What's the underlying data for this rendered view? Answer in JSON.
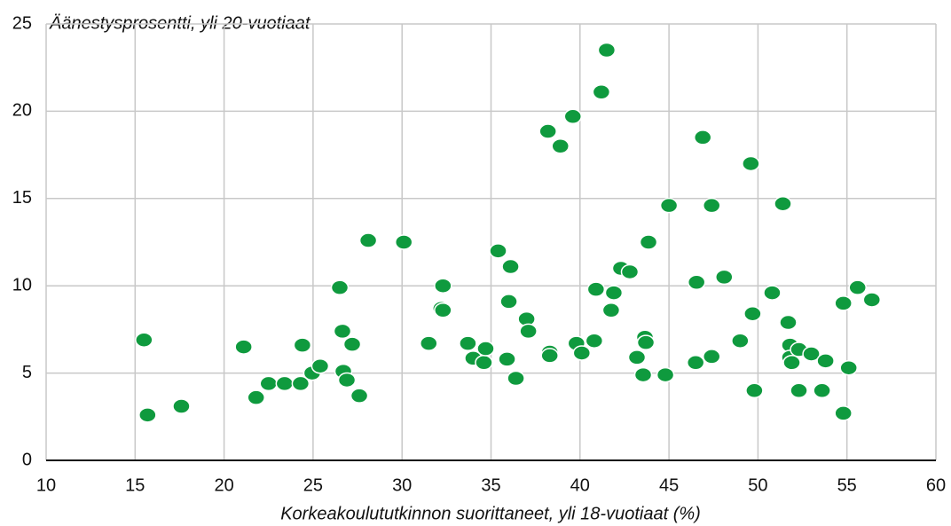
{
  "chart_data": {
    "type": "scatter",
    "y_label": "Äänestysprosentti, yli 20-vuotiaat",
    "x_label": "Korkeakoulututkinnon suorittaneet, yli 18-vuotiaat (%)",
    "color": "#0f9a3e",
    "x": [
      15.5,
      15.7,
      17.6,
      21.1,
      21.8,
      22.5,
      23.4,
      24.3,
      24.4,
      24.95,
      25.4,
      26.5,
      26.65,
      26.7,
      26.9,
      27.2,
      27.6,
      28.1,
      30.1,
      31.5,
      32.2,
      32.3,
      32.3,
      33.7,
      34.0,
      34.6,
      34.7,
      35.4,
      35.9,
      36.0,
      36.1,
      36.4,
      37.0,
      37.1,
      38.2,
      38.3,
      38.3,
      38.9,
      39.6,
      39.8,
      40.1,
      40.8,
      40.9,
      41.2,
      41.5,
      41.75,
      41.9,
      42.3,
      42.8,
      43.2,
      43.55,
      43.65,
      43.7,
      43.85,
      44.8,
      45.0,
      46.5,
      46.55,
      46.9,
      47.4,
      47.4,
      48.1,
      49.0,
      49.6,
      49.7,
      49.8,
      50.8,
      51.4,
      51.7,
      51.8,
      51.8,
      51.9,
      52.3,
      52.3,
      53.0,
      53.6,
      53.8,
      54.8,
      54.8,
      55.1,
      55.6,
      56.4
    ],
    "values": [
      6.9,
      2.6,
      3.1,
      6.5,
      3.6,
      4.4,
      4.4,
      4.4,
      6.6,
      5.0,
      5.4,
      9.9,
      7.4,
      5.1,
      4.6,
      6.65,
      3.7,
      12.6,
      12.5,
      6.7,
      8.7,
      10.0,
      8.6,
      6.7,
      5.85,
      5.6,
      6.4,
      12.0,
      5.8,
      9.1,
      11.1,
      4.7,
      8.1,
      7.4,
      18.85,
      6.2,
      6.0,
      18.0,
      19.7,
      6.7,
      6.15,
      6.85,
      9.8,
      21.1,
      23.5,
      8.6,
      9.6,
      11.0,
      10.8,
      5.9,
      4.9,
      7.05,
      6.75,
      12.5,
      4.9,
      14.6,
      5.6,
      10.2,
      18.5,
      14.6,
      5.95,
      10.5,
      6.85,
      17.0,
      8.4,
      4.0,
      9.6,
      14.7,
      7.9,
      6.6,
      5.9,
      5.6,
      6.35,
      4.0,
      6.1,
      4.0,
      5.7,
      2.7,
      9.0,
      5.3,
      9.9,
      9.2
    ],
    "xlim": [
      10,
      60
    ],
    "xticks": [
      10,
      15,
      20,
      25,
      30,
      35,
      40,
      45,
      50,
      55,
      60
    ],
    "ylim": [
      0,
      25
    ],
    "yticks": [
      0,
      5,
      10,
      15,
      20,
      25
    ],
    "grid": true
  }
}
